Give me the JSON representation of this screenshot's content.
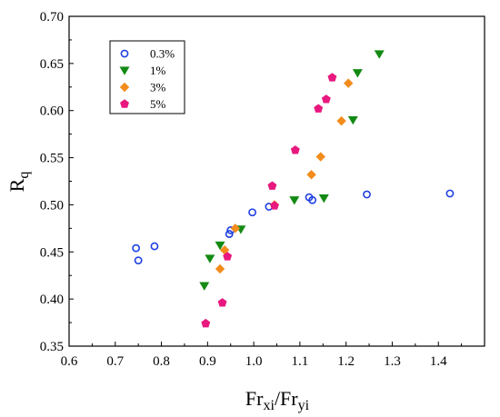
{
  "chart_data": {
    "type": "scatter",
    "xlabel_main": "Fr",
    "xlabel_sub1": "xi",
    "xlabel_sep": "/Fr",
    "xlabel_sub2": "yi",
    "ylabel_main": "R",
    "ylabel_sub": "q",
    "xlim": [
      0.6,
      1.5
    ],
    "ylim": [
      0.35,
      0.7
    ],
    "x_ticks": [
      "0.6",
      "0.7",
      "0.8",
      "0.9",
      "1.0",
      "1.1",
      "1.2",
      "1.3",
      "1.4"
    ],
    "x_tick_values": [
      0.6,
      0.7,
      0.8,
      0.9,
      1.0,
      1.1,
      1.2,
      1.3,
      1.4
    ],
    "y_ticks": [
      "0.35",
      "0.40",
      "0.45",
      "0.50",
      "0.55",
      "0.60",
      "0.65",
      "0.70"
    ],
    "y_tick_values": [
      0.35,
      0.4,
      0.45,
      0.5,
      0.55,
      0.6,
      0.65,
      0.7
    ],
    "legend_position": "top-left",
    "series": [
      {
        "name": "0.3%",
        "marker": "circle-open",
        "color": "#1f3fe0",
        "points": [
          [
            0.745,
            0.454
          ],
          [
            0.75,
            0.441
          ],
          [
            0.785,
            0.456
          ],
          [
            0.947,
            0.469
          ],
          [
            0.95,
            0.473
          ],
          [
            0.997,
            0.492
          ],
          [
            1.033,
            0.498
          ],
          [
            1.12,
            0.508
          ],
          [
            1.127,
            0.505
          ],
          [
            1.245,
            0.511
          ],
          [
            1.425,
            0.512
          ]
        ]
      },
      {
        "name": "1%",
        "marker": "triangle-down",
        "color": "#138a13",
        "points": [
          [
            0.893,
            0.414
          ],
          [
            0.905,
            0.443
          ],
          [
            0.927,
            0.457
          ],
          [
            0.972,
            0.474
          ],
          [
            1.088,
            0.505
          ],
          [
            1.152,
            0.507
          ],
          [
            1.215,
            0.59
          ],
          [
            1.225,
            0.64
          ],
          [
            1.272,
            0.66
          ]
        ]
      },
      {
        "name": "3%",
        "marker": "diamond",
        "color": "#f28c1c",
        "points": [
          [
            0.927,
            0.432
          ],
          [
            0.937,
            0.452
          ],
          [
            0.96,
            0.475
          ],
          [
            1.045,
            0.5
          ],
          [
            1.125,
            0.532
          ],
          [
            1.145,
            0.551
          ],
          [
            1.19,
            0.589
          ],
          [
            1.205,
            0.629
          ]
        ]
      },
      {
        "name": "5%",
        "marker": "pentagon",
        "color": "#e8187f",
        "points": [
          [
            0.896,
            0.374
          ],
          [
            0.932,
            0.396
          ],
          [
            0.943,
            0.445
          ],
          [
            1.04,
            0.52
          ],
          [
            1.045,
            0.499
          ],
          [
            1.09,
            0.558
          ],
          [
            1.14,
            0.602
          ],
          [
            1.157,
            0.612
          ],
          [
            1.17,
            0.635
          ]
        ]
      }
    ]
  }
}
